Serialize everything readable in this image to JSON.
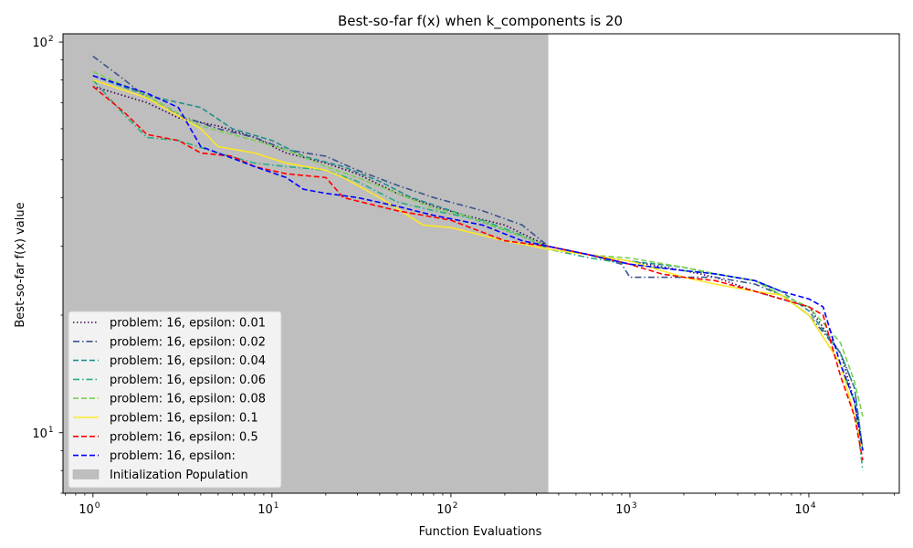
{
  "chart_data": {
    "type": "line",
    "title": "Best-so-far f(x) when k_components is 20",
    "xlabel": "Function Evaluations",
    "ylabel": "Best-so-far f(x) value",
    "xscale": "log",
    "yscale": "log",
    "xlim": [
      0.68,
      32000
    ],
    "ylim": [
      7.0,
      105
    ],
    "xticks": [
      {
        "value": 1,
        "base": "10",
        "exp": "0"
      },
      {
        "value": 10,
        "base": "10",
        "exp": "1"
      },
      {
        "value": 100,
        "base": "10",
        "exp": "2"
      },
      {
        "value": 1000,
        "base": "10",
        "exp": "3"
      },
      {
        "value": 10000,
        "base": "10",
        "exp": "4"
      }
    ],
    "yticks": [
      {
        "value": 10,
        "base": "10",
        "exp": "1"
      },
      {
        "value": 100,
        "base": "10",
        "exp": "2"
      }
    ],
    "grid": false,
    "legend_position": "lower-left",
    "shaded_region": {
      "label": "Initialization Population",
      "x_start": 0.68,
      "x_end": 350,
      "color": "#bebebe"
    },
    "series": [
      {
        "name": "problem: 16, epsilon: 0.01",
        "color": "#440154",
        "dash": "dotted",
        "x": [
          1,
          2,
          3,
          5,
          8,
          12,
          20,
          30,
          50,
          80,
          120,
          200,
          350,
          600,
          1000,
          2000,
          3000,
          5000,
          7000,
          10000,
          15000,
          18000,
          20000
        ],
        "y": [
          77,
          70,
          64,
          61,
          57,
          52,
          49,
          46,
          41,
          38,
          36,
          34,
          30,
          28.5,
          27.5,
          26,
          25,
          23,
          22,
          21,
          16,
          12,
          9
        ]
      },
      {
        "name": "problem: 16, epsilon: 0.02",
        "color": "#3b528b",
        "dash": "dashdot",
        "x": [
          1,
          1.5,
          2,
          3,
          5,
          8,
          12,
          20,
          30,
          50,
          80,
          150,
          250,
          350,
          600,
          900,
          1000,
          2000,
          3000,
          5000,
          7000,
          10000,
          15000,
          18000,
          20000
        ],
        "y": [
          92,
          80,
          72,
          65,
          60,
          57,
          53,
          51,
          47,
          43,
          40,
          37,
          34,
          30,
          28.5,
          27,
          25,
          25,
          25,
          24,
          22.5,
          20,
          16,
          13,
          9
        ]
      },
      {
        "name": "problem: 16, epsilon: 0.04",
        "color": "#21908d",
        "dash": "dashed",
        "x": [
          1,
          2,
          4,
          6,
          10,
          15,
          25,
          40,
          60,
          100,
          200,
          350,
          600,
          1000,
          2000,
          3000,
          5000,
          7000,
          10000,
          15000,
          18000,
          20000
        ],
        "y": [
          82,
          73,
          68,
          60,
          56,
          51,
          48,
          44,
          40,
          37,
          33,
          30,
          28.5,
          27.5,
          26.5,
          25.5,
          24.5,
          23,
          20.5,
          16,
          13,
          9
        ]
      },
      {
        "name": "problem: 16, epsilon: 0.06",
        "color": "#27ad81",
        "dash": "dashdot",
        "x": [
          1,
          1.5,
          2,
          3,
          5,
          8,
          12,
          20,
          30,
          50,
          80,
          150,
          250,
          350,
          600,
          1000,
          2000,
          3000,
          5000,
          7000,
          10000,
          15000,
          18000,
          20000
        ],
        "y": [
          80,
          65,
          57,
          56,
          52,
          49,
          48,
          47,
          44,
          39,
          37,
          35,
          32,
          29.5,
          28,
          27,
          26,
          25.5,
          24.5,
          22.5,
          20,
          15,
          12,
          8
        ]
      },
      {
        "name": "problem: 16, epsilon: 0.08",
        "color": "#7ad151",
        "dash": "dashed",
        "x": [
          1,
          2,
          4,
          8,
          12,
          20,
          30,
          50,
          80,
          120,
          200,
          350,
          600,
          1000,
          2000,
          3000,
          5000,
          7000,
          10000,
          15000,
          18000,
          20000
        ],
        "y": [
          84,
          73,
          61,
          56,
          53,
          48,
          45,
          41,
          37.5,
          36,
          33,
          30,
          28.5,
          28,
          26.5,
          25.5,
          24.5,
          22.5,
          21,
          17,
          13.5,
          11
        ]
      },
      {
        "name": "problem: 16, epsilon: 0.1",
        "color": "#fde725",
        "dash": "solid",
        "x": [
          1,
          2,
          4,
          5,
          8,
          12,
          20,
          25,
          40,
          70,
          100,
          200,
          350,
          600,
          1000,
          2000,
          3000,
          5000,
          7000,
          10000,
          15000,
          18000,
          20000
        ],
        "y": [
          80,
          72,
          60,
          54,
          52,
          49,
          47,
          45,
          40,
          34,
          33.5,
          31,
          29.5,
          28.5,
          27.5,
          25,
          24,
          23,
          22.5,
          20,
          15,
          11,
          9
        ]
      },
      {
        "name": "problem: 16, epsilon: 0.5",
        "color": "#ff0000",
        "dash": "dashed",
        "x": [
          1,
          1.5,
          2,
          3,
          4,
          6,
          8,
          12,
          20,
          25,
          50,
          100,
          200,
          350,
          600,
          1000,
          1500,
          2000,
          3000,
          5000,
          7000,
          10000,
          12000,
          15000,
          18000,
          20000
        ],
        "y": [
          77,
          66,
          58,
          56,
          52,
          51,
          48,
          46,
          45,
          40,
          37,
          35,
          31,
          30,
          28.5,
          27,
          25.5,
          25,
          24.5,
          23,
          22,
          21,
          20,
          14,
          11,
          8.5
        ]
      },
      {
        "name": "problem: 16, epsilon:",
        "color": "#0000ff",
        "dash": "dashed",
        "x": [
          1,
          2,
          3,
          4,
          5,
          8,
          12,
          15,
          20,
          30,
          50,
          80,
          150,
          250,
          350,
          600,
          1000,
          2000,
          3000,
          5000,
          7000,
          10000,
          12000,
          15000,
          18000,
          20000
        ],
        "y": [
          82,
          74,
          68,
          54,
          52,
          48,
          45,
          42,
          41,
          40,
          38,
          36,
          34,
          31,
          30,
          28.5,
          27,
          26,
          25.5,
          24.5,
          23,
          22,
          21,
          15,
          12,
          9
        ]
      }
    ]
  }
}
